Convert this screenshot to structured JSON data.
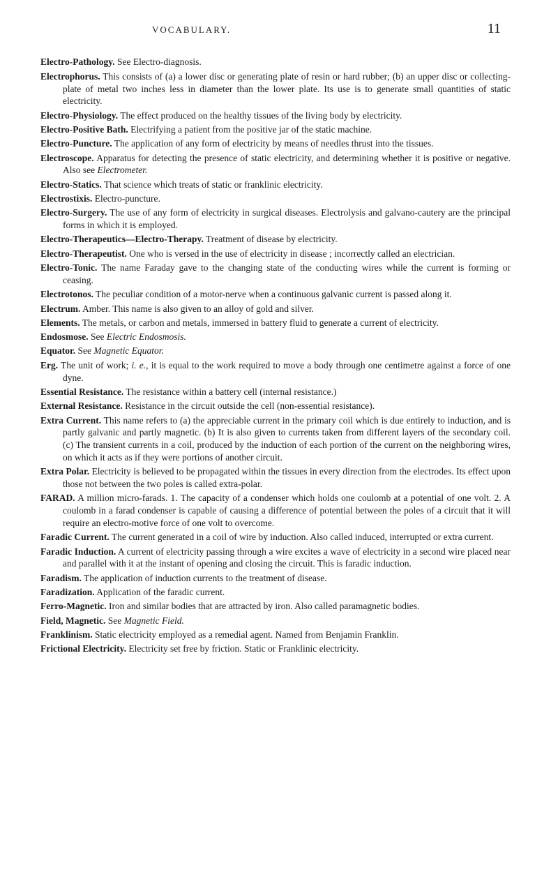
{
  "header": {
    "running_head": "VOCABULARY.",
    "page_number": "11"
  },
  "entries": [
    {
      "term": "Electro-Pathology.",
      "body": " See Electro-diagnosis."
    },
    {
      "term": "Electrophorus.",
      "body": " This consists of (a) a lower disc or generating plate of resin or hard rubber; (b) an upper disc or collecting-plate of metal two inches less in diameter than the lower plate. Its use is to generate small quantities of static electricity."
    },
    {
      "term": "Electro-Physiology.",
      "body": " The effect produced on the healthy tissues of the living body by electricity."
    },
    {
      "term": "Electro-Positive Bath.",
      "body": " Electrifying a patient from the positive jar of the static machine."
    },
    {
      "term": "Electro-Puncture.",
      "body": " The application of any form of electricity by means of needles thrust into the tissues."
    },
    {
      "term": "Electroscope.",
      "body": " Apparatus for detecting the presence of static electricity, and determining whether it is positive or negative. Also see ",
      "italic": "Electrometer."
    },
    {
      "term": "Electro-Statics.",
      "body": " That science which treats of static or franklinic electricity."
    },
    {
      "term": "Electrostixis.",
      "body": " Electro-puncture."
    },
    {
      "term": "Electro-Surgery.",
      "body": " The use of any form of electricity in surgical diseases. Electrolysis and galvano-cautery are the principal forms in which it is employed."
    },
    {
      "term": "Electro-Therapeutics—Electro-Therapy.",
      "body": " Treatment of disease by electricity."
    },
    {
      "term": "Electro-Therapeutist.",
      "body": " One who is versed in the use of electricity in disease ; incorrectly called an electrician."
    },
    {
      "term": "Electro-Tonic.",
      "body": " The name Faraday gave to the changing state of the conducting wires while the current is forming or ceasing."
    },
    {
      "term": "Electrotonos.",
      "body": " The peculiar condition of a motor-nerve when a continuous galvanic current is passed along it."
    },
    {
      "term": "Electrum.",
      "body": " Amber. This name is also given to an alloy of gold and silver."
    },
    {
      "term": "Elements.",
      "body": " The metals, or carbon and metals, immersed in battery fluid to generate a current of electricity."
    },
    {
      "term": "Endosmose.",
      "body": " See ",
      "italic": "Electric Endosmosis."
    },
    {
      "term": "Equator.",
      "body": " See ",
      "italic": "Magnetic Equator."
    },
    {
      "term": "Erg.",
      "body": " The unit of work; ",
      "italic2": "i. e.",
      "body2": ", it is equal to the work required to move a body through one centimetre against a force of one dyne."
    },
    {
      "term": "Essential Resistance.",
      "body": " The resistance within a battery cell (internal resistance.)"
    },
    {
      "term": "External Resistance.",
      "body": " Resistance in the circuit outside the cell (non-essential resistance)."
    },
    {
      "term": "Extra Current.",
      "body": " This name refers to (a) the appreciable current in the primary coil which is due entirely to induction, and is partly galvanic and partly magnetic. (b) It is also given to currents taken from different layers of the secondary coil. (c) The transient currents in a coil, produced by the induction of each portion of the current on the neighboring wires, on which it acts as if they were portions of another circuit."
    },
    {
      "term": "Extra Polar.",
      "body": " Electricity is believed to be propagated within the tissues in every direction from the electrodes. Its effect upon those not between the two poles is called extra-polar."
    },
    {
      "term": "FARAD.",
      "body": " A million micro-farads. 1. The capacity of a condenser which holds one coulomb at a potential of one volt. 2. A coulomb in a farad condenser is capable of causing a difference of potential between the poles of a circuit that it will require an electro-motive force of one volt to overcome."
    },
    {
      "term": "Faradic Current.",
      "body": " The current generated in a coil of wire by induction. Also called induced, interrupted or extra current."
    },
    {
      "term": "Faradic Induction.",
      "body": " A current of electricity passing through a wire excites a wave of electricity in a second wire placed near and parallel with it at the instant of opening and closing the circuit. This is faradic induction."
    },
    {
      "term": "Faradism.",
      "body": " The application of induction currents to the treatment of disease."
    },
    {
      "term": "Faradization.",
      "body": " Application of the faradic current."
    },
    {
      "term": "Ferro-Magnetic.",
      "body": " Iron and similar bodies that are attracted by iron. Also called paramagnetic bodies."
    },
    {
      "term": "Field, Magnetic.",
      "body": " See ",
      "italic": "Magnetic Field."
    },
    {
      "term": "Franklinism.",
      "body": " Static electricity employed as a remedial agent. Named from Benjamin Franklin."
    },
    {
      "term": "Frictional Electricity.",
      "body": " Electricity set free by friction. Static or Franklinic electricity."
    }
  ]
}
